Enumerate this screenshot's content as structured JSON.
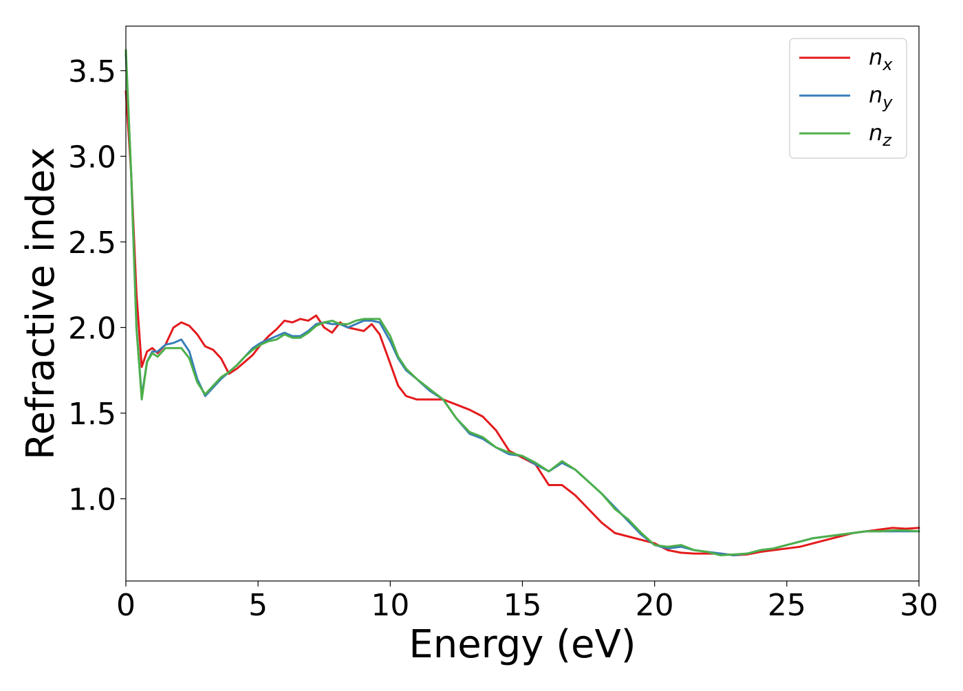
{
  "chart_data": {
    "type": "line",
    "title": "",
    "xlabel": "Energy (eV)",
    "ylabel": "Refractive index",
    "xlim": [
      0,
      30
    ],
    "ylim": [
      0.52,
      3.76
    ],
    "xticks": [
      0,
      5,
      10,
      15,
      20,
      25,
      30
    ],
    "xtick_labels": [
      "0",
      "5",
      "10",
      "15",
      "20",
      "25",
      "30"
    ],
    "yticks": [
      1.0,
      1.5,
      2.0,
      2.5,
      3.0,
      3.5
    ],
    "ytick_labels": [
      "1.0",
      "1.5",
      "2.0",
      "2.5",
      "3.0",
      "3.5"
    ],
    "grid": false,
    "legend_position": "top-right",
    "series": [
      {
        "name": "n_x",
        "label_main": "n",
        "label_sub": "x",
        "color": "#e41a1c",
        "x": [
          0,
          0.2,
          0.4,
          0.6,
          0.8,
          1.0,
          1.2,
          1.5,
          1.8,
          2.1,
          2.4,
          2.7,
          3.0,
          3.3,
          3.6,
          3.9,
          4.2,
          4.5,
          4.8,
          5.1,
          5.4,
          5.7,
          6.0,
          6.3,
          6.6,
          6.9,
          7.2,
          7.5,
          7.8,
          8.1,
          8.4,
          8.7,
          9.0,
          9.3,
          9.6,
          10.0,
          10.3,
          10.6,
          11.0,
          11.5,
          12.0,
          12.5,
          13.0,
          13.5,
          14.0,
          14.5,
          15.0,
          15.5,
          16.0,
          16.5,
          17.0,
          17.5,
          18.0,
          18.5,
          19.0,
          19.5,
          20.0,
          20.5,
          21.0,
          21.5,
          22.0,
          22.5,
          23.0,
          23.5,
          24.0,
          24.5,
          25.0,
          25.5,
          26.0,
          26.5,
          27.0,
          27.5,
          28.0,
          28.5,
          29.0,
          29.5,
          30.0
        ],
        "values": [
          3.38,
          2.9,
          2.2,
          1.77,
          1.86,
          1.88,
          1.85,
          1.9,
          2.0,
          2.03,
          2.01,
          1.96,
          1.89,
          1.87,
          1.82,
          1.73,
          1.76,
          1.8,
          1.84,
          1.9,
          1.95,
          1.99,
          2.04,
          2.03,
          2.05,
          2.04,
          2.07,
          2.0,
          1.97,
          2.03,
          2.0,
          1.99,
          1.98,
          2.02,
          1.96,
          1.79,
          1.66,
          1.6,
          1.58,
          1.58,
          1.58,
          1.55,
          1.52,
          1.48,
          1.4,
          1.28,
          1.24,
          1.2,
          1.08,
          1.08,
          1.02,
          0.94,
          0.86,
          0.8,
          0.78,
          0.76,
          0.74,
          0.7,
          0.685,
          0.68,
          0.68,
          0.68,
          0.67,
          0.675,
          0.69,
          0.7,
          0.71,
          0.72,
          0.74,
          0.76,
          0.78,
          0.8,
          0.81,
          0.82,
          0.83,
          0.825,
          0.83
        ]
      },
      {
        "name": "n_y",
        "label_main": "n",
        "label_sub": "y",
        "color": "#377eb8",
        "x": [
          0,
          0.2,
          0.4,
          0.6,
          0.8,
          1.0,
          1.2,
          1.5,
          1.8,
          2.1,
          2.4,
          2.7,
          3.0,
          3.3,
          3.6,
          3.9,
          4.2,
          4.5,
          4.8,
          5.1,
          5.4,
          5.7,
          6.0,
          6.3,
          6.6,
          6.9,
          7.2,
          7.5,
          7.8,
          8.1,
          8.4,
          8.7,
          9.0,
          9.3,
          9.6,
          10.0,
          10.3,
          10.6,
          11.0,
          11.5,
          12.0,
          12.5,
          13.0,
          13.5,
          14.0,
          14.5,
          15.0,
          15.5,
          16.0,
          16.5,
          17.0,
          17.5,
          18.0,
          18.5,
          19.0,
          19.5,
          20.0,
          20.5,
          21.0,
          21.5,
          22.0,
          22.5,
          23.0,
          23.5,
          24.0,
          24.5,
          25.0,
          25.5,
          26.0,
          26.5,
          27.0,
          27.5,
          28.0,
          28.5,
          29.0,
          29.5,
          30.0
        ],
        "values": [
          3.6,
          2.9,
          2.0,
          1.6,
          1.8,
          1.86,
          1.86,
          1.9,
          1.91,
          1.93,
          1.86,
          1.7,
          1.6,
          1.65,
          1.7,
          1.74,
          1.78,
          1.83,
          1.88,
          1.91,
          1.93,
          1.95,
          1.97,
          1.95,
          1.95,
          1.98,
          2.02,
          2.03,
          2.02,
          2.02,
          2.0,
          2.02,
          2.04,
          2.04,
          2.03,
          1.92,
          1.82,
          1.75,
          1.7,
          1.63,
          1.58,
          1.47,
          1.38,
          1.35,
          1.3,
          1.26,
          1.25,
          1.2,
          1.16,
          1.21,
          1.17,
          1.1,
          1.03,
          0.95,
          0.87,
          0.79,
          0.73,
          0.71,
          0.72,
          0.7,
          0.69,
          0.68,
          0.67,
          0.68,
          0.7,
          0.71,
          0.73,
          0.75,
          0.77,
          0.78,
          0.79,
          0.8,
          0.81,
          0.81,
          0.81,
          0.81,
          0.81
        ]
      },
      {
        "name": "n_z",
        "label_main": "n",
        "label_sub": "z",
        "color": "#4daf4a",
        "x": [
          0,
          0.2,
          0.4,
          0.6,
          0.8,
          1.0,
          1.2,
          1.5,
          1.8,
          2.1,
          2.4,
          2.7,
          3.0,
          3.3,
          3.6,
          3.9,
          4.2,
          4.5,
          4.8,
          5.1,
          5.4,
          5.7,
          6.0,
          6.3,
          6.6,
          6.9,
          7.2,
          7.5,
          7.8,
          8.1,
          8.4,
          8.7,
          9.0,
          9.3,
          9.6,
          10.0,
          10.3,
          10.6,
          11.0,
          11.5,
          12.0,
          12.5,
          13.0,
          13.5,
          14.0,
          14.5,
          15.0,
          15.5,
          16.0,
          16.5,
          17.0,
          17.5,
          18.0,
          18.5,
          19.0,
          19.5,
          20.0,
          20.5,
          21.0,
          21.5,
          22.0,
          22.5,
          23.0,
          23.5,
          24.0,
          24.5,
          25.0,
          25.5,
          26.0,
          26.5,
          27.0,
          27.5,
          28.0,
          28.5,
          29.0,
          29.5,
          30.0
        ],
        "values": [
          3.62,
          2.9,
          2.0,
          1.58,
          1.8,
          1.85,
          1.83,
          1.88,
          1.88,
          1.88,
          1.82,
          1.68,
          1.61,
          1.66,
          1.71,
          1.74,
          1.78,
          1.83,
          1.87,
          1.9,
          1.92,
          1.93,
          1.96,
          1.94,
          1.94,
          1.97,
          2.01,
          2.03,
          2.04,
          2.02,
          2.02,
          2.04,
          2.05,
          2.05,
          2.05,
          1.95,
          1.83,
          1.76,
          1.7,
          1.64,
          1.58,
          1.47,
          1.39,
          1.36,
          1.3,
          1.27,
          1.25,
          1.21,
          1.16,
          1.22,
          1.17,
          1.1,
          1.03,
          0.94,
          0.88,
          0.8,
          0.73,
          0.72,
          0.73,
          0.7,
          0.69,
          0.67,
          0.675,
          0.68,
          0.7,
          0.71,
          0.73,
          0.75,
          0.77,
          0.78,
          0.79,
          0.8,
          0.81,
          0.81,
          0.815,
          0.815,
          0.81
        ]
      }
    ]
  }
}
